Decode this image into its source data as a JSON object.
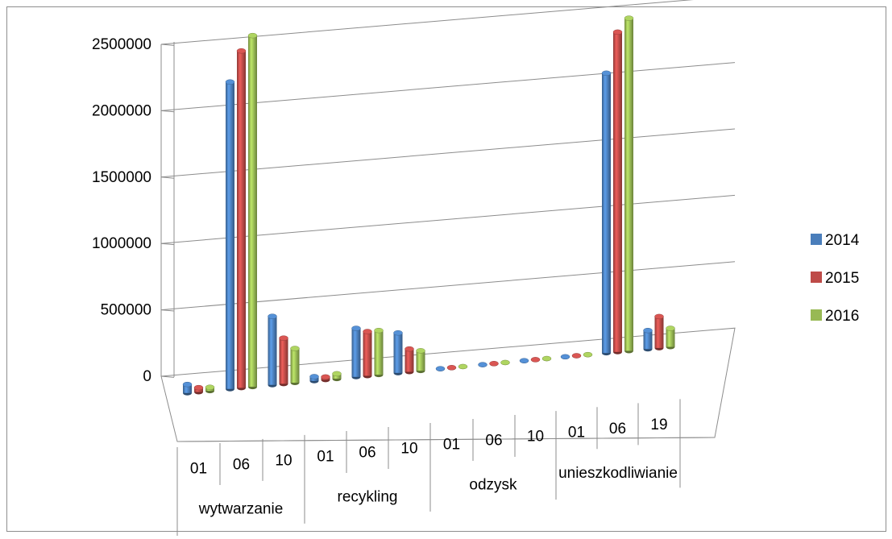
{
  "chart_data": {
    "type": "bar",
    "title": "",
    "xlabel": "",
    "ylabel": "",
    "ylim": [
      0,
      2500000
    ],
    "yticks": [
      "0",
      "500000",
      "1000000",
      "1500000",
      "2000000",
      "2500000"
    ],
    "grid": true,
    "legend_position": "right",
    "groups": [
      {
        "label": "wytwarzanie",
        "categories": [
          "01",
          "06",
          "10"
        ]
      },
      {
        "label": "recykling",
        "categories": [
          "01",
          "06",
          "10"
        ]
      },
      {
        "label": "odzysk",
        "categories": [
          "01",
          "06",
          "10"
        ]
      },
      {
        "label": "unieszkodliwianie",
        "categories": [
          "01",
          "06",
          "19"
        ]
      }
    ],
    "series": [
      {
        "name": "2014",
        "color": "#4a7ebb",
        "values": [
          60000,
          2150000,
          480000,
          30000,
          340000,
          280000,
          1000,
          1000,
          1000,
          1000,
          1960000,
          130000
        ]
      },
      {
        "name": "2015",
        "color": "#be4b48",
        "values": [
          30000,
          2360000,
          320000,
          20000,
          310000,
          160000,
          1000,
          1000,
          1000,
          1000,
          2240000,
          220000
        ]
      },
      {
        "name": "2016",
        "color": "#98b954",
        "values": [
          25000,
          2460000,
          240000,
          35000,
          310000,
          140000,
          1000,
          1000,
          1000,
          1000,
          2330000,
          130000
        ]
      }
    ]
  }
}
